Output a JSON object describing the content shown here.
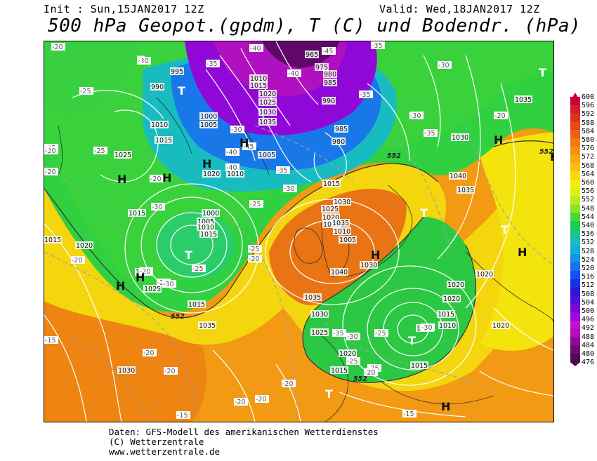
{
  "header": {
    "init": "Init : Sun,15JAN2017 12Z",
    "valid": "Valid: Wed,18JAN2017 12Z",
    "title": "500 hPa Geopot.(gpdm), T (C) und Bodendr. (hPa)"
  },
  "footer": {
    "line1": "Daten: GFS-Modell des amerikanischen Wetterdienstes",
    "line2": "(C) Wetterzentrale",
    "line3": "www.wetterzentrale.de"
  },
  "scale": {
    "labels": [
      "600",
      "596",
      "592",
      "588",
      "584",
      "580",
      "576",
      "572",
      "568",
      "564",
      "560",
      "556",
      "552",
      "548",
      "544",
      "540",
      "536",
      "532",
      "528",
      "524",
      "520",
      "516",
      "512",
      "508",
      "504",
      "500",
      "496",
      "492",
      "488",
      "484",
      "480",
      "476"
    ],
    "colors": [
      "#c8003c",
      "#d81a2c",
      "#e0301e",
      "#e84818",
      "#ee6014",
      "#f27812",
      "#f69010",
      "#f8a810",
      "#f8c010",
      "#f8d810",
      "#f4ee10",
      "#dcf014",
      "#b8ec1c",
      "#88e428",
      "#44d838",
      "#20cc48",
      "#1cc488",
      "#18bcc0",
      "#18acd8",
      "#1890e8",
      "#1870f0",
      "#1850f0",
      "#1830e8",
      "#2818d8",
      "#5010d8",
      "#7808d8",
      "#a008d8",
      "#c010d0",
      "#b010b8",
      "#900898",
      "#700878",
      "#500858"
    ]
  },
  "map": {
    "contour_label_552": "552",
    "pressure_labels": [
      {
        "t": "965"
      },
      {
        "t": "975"
      },
      {
        "t": "980"
      },
      {
        "t": "985"
      },
      {
        "t": "990"
      },
      {
        "t": "995"
      },
      {
        "t": "990"
      },
      {
        "t": "1010"
      },
      {
        "t": "1015"
      },
      {
        "t": "1020"
      },
      {
        "t": "1025"
      },
      {
        "t": "1030"
      },
      {
        "t": "1035"
      },
      {
        "t": "1000"
      },
      {
        "t": "1005"
      },
      {
        "t": "1010"
      },
      {
        "t": "1015"
      },
      {
        "t": "1020"
      },
      {
        "t": "1025"
      },
      {
        "t": "1005"
      },
      {
        "t": "1010"
      },
      {
        "t": "985"
      },
      {
        "t": "980"
      },
      {
        "t": "1015"
      },
      {
        "t": "1035"
      },
      {
        "t": "1030"
      },
      {
        "t": "1040"
      },
      {
        "t": "1035"
      },
      {
        "t": "1030"
      },
      {
        "t": "1025"
      },
      {
        "t": "1020"
      },
      {
        "t": "1015"
      },
      {
        "t": "1010"
      },
      {
        "t": "1005"
      },
      {
        "t": "1015"
      },
      {
        "t": "1020"
      },
      {
        "t": "1015"
      },
      {
        "t": "1030"
      },
      {
        "t": "1035"
      },
      {
        "t": "1040"
      },
      {
        "t": "1035"
      },
      {
        "t": "1030"
      },
      {
        "t": "1025"
      },
      {
        "t": "1020"
      },
      {
        "t": "1015"
      },
      {
        "t": "1015"
      },
      {
        "t": "1020"
      },
      {
        "t": "1020"
      },
      {
        "t": "1020"
      },
      {
        "t": "1020"
      },
      {
        "t": "1015"
      },
      {
        "t": "1010"
      },
      {
        "t": "1005"
      },
      {
        "t": "1000"
      },
      {
        "t": "1005"
      },
      {
        "t": "1010"
      },
      {
        "t": "1015"
      },
      {
        "t": "1020"
      },
      {
        "t": "1025"
      },
      {
        "t": "1015"
      },
      {
        "t": "1035"
      },
      {
        "t": "1030"
      }
    ],
    "temperature_labels": [
      "-20",
      "-30",
      "-35",
      "-40",
      "-45",
      "-40",
      "-35",
      "-30",
      "-25",
      "-35",
      "-30",
      "-35",
      "-25",
      "-20",
      "-20",
      "-25",
      "-30",
      "-40",
      "-45",
      "-40",
      "-35",
      "-30",
      "-25",
      "-20",
      "-30",
      "-25",
      "-20",
      "-25",
      "-30",
      "-20",
      "-25",
      "-20",
      "-15",
      "-20",
      "-15",
      "-20",
      "-20",
      "-25",
      "-30",
      "-35",
      "-25",
      "-20",
      "-20",
      "-15",
      "-20",
      "-30",
      "-25",
      "-20"
    ],
    "letters": [
      {
        "t": "T"
      },
      {
        "t": "T"
      },
      {
        "t": "H"
      },
      {
        "t": "H"
      },
      {
        "t": "H"
      },
      {
        "t": "T"
      },
      {
        "t": "H"
      },
      {
        "t": "T"
      },
      {
        "t": "H"
      },
      {
        "t": "T"
      },
      {
        "t": "T"
      },
      {
        "t": "H"
      },
      {
        "t": "H"
      },
      {
        "t": "H"
      },
      {
        "t": "T"
      },
      {
        "t": "H"
      },
      {
        "t": "T"
      },
      {
        "t": "H"
      },
      {
        "t": "T"
      },
      {
        "t": "H"
      }
    ]
  }
}
